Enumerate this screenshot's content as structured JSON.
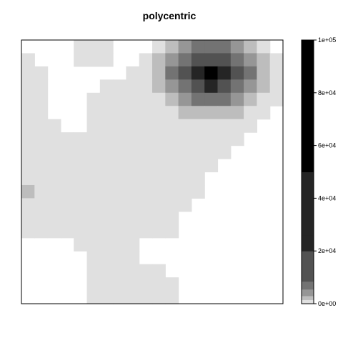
{
  "chart_data": {
    "type": "heatmap",
    "title": "polycentric",
    "xlabel": "",
    "ylabel": "",
    "legend_position": "right",
    "colorbar": {
      "range": [
        0,
        100000
      ],
      "tick_labels": [
        "0e+00",
        "2e+04",
        "4e+04",
        "6e+04",
        "8e+04",
        "1e+05"
      ],
      "palette_light_to_dark": [
        "#e0e0e0",
        "#bdbdbd",
        "#969696",
        "#737373",
        "#525252",
        "#252525",
        "#000000"
      ]
    },
    "grid_note": "20 columns x 20 rows, row 0 = top; null = no data (white)",
    "grid": [
      [
        null,
        null,
        null,
        null,
        0,
        0,
        0,
        null,
        null,
        null,
        0,
        1,
        2,
        3,
        3,
        3,
        2,
        1,
        0,
        null
      ],
      [
        0,
        null,
        null,
        null,
        0,
        0,
        0,
        null,
        null,
        0,
        1,
        2,
        3,
        4,
        4,
        4,
        3,
        2,
        1,
        0
      ],
      [
        0,
        0,
        null,
        null,
        null,
        null,
        null,
        null,
        0,
        0,
        1,
        3,
        4,
        5,
        6,
        5,
        4,
        3,
        1,
        0
      ],
      [
        0,
        0,
        null,
        null,
        null,
        null,
        0,
        0,
        0,
        0,
        1,
        2,
        3,
        4,
        5,
        4,
        3,
        2,
        1,
        0
      ],
      [
        0,
        0,
        null,
        null,
        null,
        0,
        0,
        0,
        0,
        0,
        0,
        1,
        2,
        3,
        3,
        3,
        2,
        1,
        0,
        0
      ],
      [
        0,
        0,
        null,
        null,
        null,
        0,
        0,
        0,
        0,
        0,
        0,
        0,
        1,
        1,
        1,
        1,
        1,
        0,
        0,
        null
      ],
      [
        0,
        0,
        0,
        null,
        null,
        0,
        0,
        0,
        0,
        0,
        0,
        0,
        0,
        0,
        0,
        0,
        0,
        0,
        null,
        null
      ],
      [
        0,
        0,
        0,
        0,
        0,
        0,
        0,
        0,
        0,
        0,
        0,
        0,
        0,
        0,
        0,
        0,
        0,
        null,
        null,
        null
      ],
      [
        0,
        0,
        0,
        0,
        0,
        0,
        0,
        0,
        0,
        0,
        0,
        0,
        0,
        0,
        0,
        0,
        null,
        null,
        null,
        null
      ],
      [
        0,
        0,
        0,
        0,
        0,
        0,
        0,
        0,
        0,
        0,
        0,
        0,
        0,
        0,
        0,
        null,
        null,
        null,
        null,
        null
      ],
      [
        0,
        0,
        0,
        0,
        0,
        0,
        0,
        0,
        0,
        0,
        0,
        0,
        0,
        0,
        null,
        null,
        null,
        null,
        null,
        null
      ],
      [
        1,
        0,
        0,
        0,
        0,
        0,
        0,
        0,
        0,
        0,
        0,
        0,
        0,
        0,
        null,
        null,
        null,
        null,
        null,
        null
      ],
      [
        0,
        0,
        0,
        0,
        0,
        0,
        0,
        0,
        0,
        0,
        0,
        0,
        0,
        null,
        null,
        null,
        null,
        null,
        null,
        null
      ],
      [
        0,
        0,
        0,
        0,
        0,
        0,
        0,
        0,
        0,
        0,
        0,
        0,
        null,
        null,
        null,
        null,
        null,
        null,
        null,
        null
      ],
      [
        0,
        0,
        0,
        0,
        0,
        0,
        0,
        0,
        0,
        0,
        0,
        0,
        null,
        null,
        null,
        null,
        null,
        null,
        null,
        null
      ],
      [
        null,
        null,
        null,
        null,
        0,
        0,
        0,
        0,
        0,
        null,
        null,
        null,
        null,
        null,
        null,
        null,
        null,
        null,
        null,
        null
      ],
      [
        null,
        null,
        null,
        null,
        null,
        0,
        0,
        0,
        0,
        null,
        null,
        null,
        null,
        null,
        null,
        null,
        null,
        null,
        null,
        null
      ],
      [
        null,
        null,
        null,
        null,
        null,
        0,
        0,
        0,
        0,
        0,
        0,
        null,
        null,
        null,
        null,
        null,
        null,
        null,
        null,
        null
      ],
      [
        null,
        null,
        null,
        null,
        null,
        0,
        0,
        0,
        0,
        0,
        0,
        0,
        null,
        null,
        null,
        null,
        null,
        null,
        null,
        null
      ],
      [
        null,
        null,
        null,
        null,
        null,
        0,
        0,
        0,
        0,
        0,
        0,
        0,
        null,
        null,
        null,
        null,
        null,
        null,
        null,
        null
      ]
    ]
  }
}
